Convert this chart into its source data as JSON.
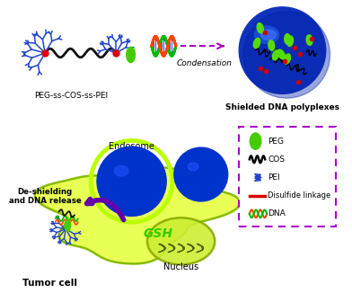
{
  "bg_color": "#ffffff",
  "title_peg": "PEG-ss-COS-ss-PEI",
  "title_shielded": "Shielded DNA polyplexes",
  "title_tumor": "Tumor cell",
  "label_condensation": "Condensation",
  "label_endosome": "Endosome",
  "label_nucleus": "Nucleus",
  "label_deshielding": "De-shielding\nand DNA release",
  "label_gsh": "GSH",
  "arrow_color": "#aa00cc",
  "cell_color": "#e8ff55",
  "cell_edge": "#88bb00",
  "sphere_blue": "#0033cc",
  "sphere_light": "#2255ee",
  "endosome_ring_color": "#bbff00",
  "nucleus_fill": "#ccee33",
  "nucleus_edge": "#88aa00",
  "purple_arrow": "#6600aa",
  "gsh_color": "#33cc00",
  "pei_color": "#2244cc",
  "cos_color": "#111111",
  "peg_color": "#44cc00",
  "disulfide_color": "#dd0000",
  "dna_color1": "#ff4400",
  "dna_color2": "#00bb00",
  "dna_color3": "#0000cc"
}
